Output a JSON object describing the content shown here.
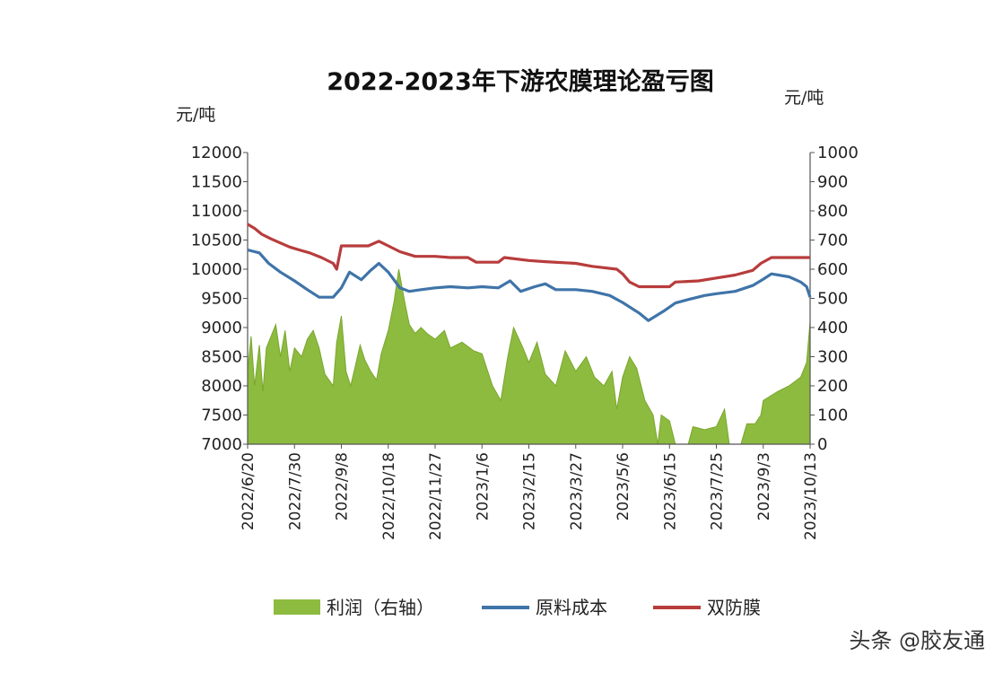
{
  "watermark": "头条 @胶友通",
  "chart_data": {
    "type": "area+line",
    "title": "2022-2023年下游农膜理论盈亏图",
    "left_unit": "元/吨",
    "right_unit": "元/吨",
    "y_left": {
      "min": 7000,
      "max": 12000,
      "ticks": [
        "12000",
        "11500",
        "11000",
        "10500",
        "10000",
        "9500",
        "9000",
        "8500",
        "8000",
        "7500",
        "7000"
      ]
    },
    "y_right": {
      "min": 0,
      "max": 1000,
      "ticks": [
        "1000",
        "900",
        "800",
        "700",
        "600",
        "500",
        "400",
        "300",
        "200",
        "100",
        "0"
      ]
    },
    "x_ticks": [
      "2022/6/20",
      "2022/7/30",
      "2022/9/8",
      "2022/10/18",
      "2022/11/27",
      "2023/1/6",
      "2023/2/15",
      "2023/3/27",
      "2023/5/6",
      "2023/6/15",
      "2023/7/25",
      "2023/9/3",
      "2023/10/13"
    ],
    "x_domain": [
      "2022/6/20",
      "2023/10/13"
    ],
    "colors": {
      "profit": "#8dbb3f",
      "profit_edge": "#7aa62e",
      "cost": "#3f74a8",
      "film": "#b83c3c",
      "axis": "#555555"
    },
    "legend": [
      {
        "label": "利润（右轴）",
        "color": "#8dbb3f",
        "kind": "area"
      },
      {
        "label": "原料成本",
        "color": "#3f74a8",
        "kind": "line"
      },
      {
        "label": "双防膜",
        "color": "#b83c3c",
        "kind": "line"
      }
    ],
    "series": [
      {
        "name": "双防膜",
        "axis": "left",
        "points": [
          [
            "2022/6/20",
            10770
          ],
          [
            "2022/6/26",
            10700
          ],
          [
            "2022/7/2",
            10600
          ],
          [
            "2022/7/10",
            10520
          ],
          [
            "2022/7/18",
            10450
          ],
          [
            "2022/7/26",
            10380
          ],
          [
            "2022/8/3",
            10330
          ],
          [
            "2022/8/12",
            10280
          ],
          [
            "2022/8/22",
            10200
          ],
          [
            "2022/9/1",
            10100
          ],
          [
            "2022/9/4",
            10000
          ],
          [
            "2022/9/8",
            10400
          ],
          [
            "2022/9/20",
            10400
          ],
          [
            "2022/10/1",
            10400
          ],
          [
            "2022/10/10",
            10480
          ],
          [
            "2022/10/18",
            10400
          ],
          [
            "2022/10/28",
            10300
          ],
          [
            "2022/11/10",
            10220
          ],
          [
            "2022/11/27",
            10220
          ],
          [
            "2022/12/10",
            10200
          ],
          [
            "2022/12/25",
            10200
          ],
          [
            "2023/1/1",
            10120
          ],
          [
            "2023/1/20",
            10120
          ],
          [
            "2023/1/25",
            10200
          ],
          [
            "2023/2/15",
            10150
          ],
          [
            "2023/3/1",
            10130
          ],
          [
            "2023/3/27",
            10100
          ],
          [
            "2023/4/10",
            10050
          ],
          [
            "2023/5/1",
            10000
          ],
          [
            "2023/5/6",
            9920
          ],
          [
            "2023/5/12",
            9780
          ],
          [
            "2023/5/20",
            9700
          ],
          [
            "2023/6/15",
            9700
          ],
          [
            "2023/6/20",
            9780
          ],
          [
            "2023/7/10",
            9800
          ],
          [
            "2023/7/25",
            9850
          ],
          [
            "2023/8/10",
            9900
          ],
          [
            "2023/8/25",
            9980
          ],
          [
            "2023/9/1",
            10100
          ],
          [
            "2023/9/10",
            10200
          ],
          [
            "2023/10/10",
            10200
          ],
          [
            "2023/10/13",
            10200
          ]
        ]
      },
      {
        "name": "原料成本",
        "axis": "left",
        "points": [
          [
            "2022/6/20",
            10330
          ],
          [
            "2022/6/30",
            10280
          ],
          [
            "2022/7/8",
            10100
          ],
          [
            "2022/7/18",
            9950
          ],
          [
            "2022/7/30",
            9800
          ],
          [
            "2022/8/10",
            9650
          ],
          [
            "2022/8/20",
            9520
          ],
          [
            "2022/9/1",
            9520
          ],
          [
            "2022/9/8",
            9680
          ],
          [
            "2022/9/15",
            9950
          ],
          [
            "2022/9/25",
            9820
          ],
          [
            "2022/10/3",
            9980
          ],
          [
            "2022/10/10",
            10100
          ],
          [
            "2022/10/18",
            9950
          ],
          [
            "2022/10/28",
            9680
          ],
          [
            "2022/11/5",
            9620
          ],
          [
            "2022/11/15",
            9650
          ],
          [
            "2022/11/27",
            9680
          ],
          [
            "2022/12/10",
            9700
          ],
          [
            "2022/12/25",
            9680
          ],
          [
            "2023/1/6",
            9700
          ],
          [
            "2023/1/20",
            9680
          ],
          [
            "2023/1/30",
            9800
          ],
          [
            "2023/2/8",
            9620
          ],
          [
            "2023/2/20",
            9700
          ],
          [
            "2023/3/1",
            9750
          ],
          [
            "2023/3/10",
            9650
          ],
          [
            "2023/3/27",
            9650
          ],
          [
            "2023/4/10",
            9620
          ],
          [
            "2023/4/25",
            9550
          ],
          [
            "2023/5/6",
            9430
          ],
          [
            "2023/5/20",
            9250
          ],
          [
            "2023/5/28",
            9120
          ],
          [
            "2023/6/10",
            9280
          ],
          [
            "2023/6/20",
            9420
          ],
          [
            "2023/7/1",
            9480
          ],
          [
            "2023/7/15",
            9550
          ],
          [
            "2023/7/25",
            9580
          ],
          [
            "2023/8/10",
            9620
          ],
          [
            "2023/8/25",
            9720
          ],
          [
            "2023/9/3",
            9830
          ],
          [
            "2023/9/10",
            9920
          ],
          [
            "2023/9/25",
            9870
          ],
          [
            "2023/10/5",
            9780
          ],
          [
            "2023/10/10",
            9700
          ],
          [
            "2023/10/13",
            9520
          ]
        ]
      },
      {
        "name": "利润（右轴）",
        "axis": "right",
        "points": [
          [
            "2022/6/20",
            250
          ],
          [
            "2022/6/23",
            370
          ],
          [
            "2022/6/26",
            200
          ],
          [
            "2022/6/30",
            340
          ],
          [
            "2022/7/3",
            180
          ],
          [
            "2022/7/6",
            330
          ],
          [
            "2022/7/10",
            370
          ],
          [
            "2022/7/14",
            410
          ],
          [
            "2022/7/18",
            300
          ],
          [
            "2022/7/22",
            390
          ],
          [
            "2022/7/26",
            250
          ],
          [
            "2022/7/30",
            330
          ],
          [
            "2022/8/5",
            300
          ],
          [
            "2022/8/10",
            360
          ],
          [
            "2022/8/15",
            390
          ],
          [
            "2022/8/20",
            330
          ],
          [
            "2022/8/25",
            240
          ],
          [
            "2022/9/1",
            200
          ],
          [
            "2022/9/4",
            350
          ],
          [
            "2022/9/8",
            440
          ],
          [
            "2022/9/12",
            250
          ],
          [
            "2022/9/16",
            200
          ],
          [
            "2022/9/20",
            270
          ],
          [
            "2022/9/24",
            340
          ],
          [
            "2022/9/28",
            290
          ],
          [
            "2022/10/3",
            250
          ],
          [
            "2022/10/8",
            220
          ],
          [
            "2022/10/12",
            310
          ],
          [
            "2022/10/18",
            390
          ],
          [
            "2022/10/23",
            490
          ],
          [
            "2022/10/27",
            600
          ],
          [
            "2022/11/1",
            490
          ],
          [
            "2022/11/5",
            410
          ],
          [
            "2022/11/10",
            380
          ],
          [
            "2022/11/15",
            400
          ],
          [
            "2022/11/20",
            380
          ],
          [
            "2022/11/27",
            360
          ],
          [
            "2022/12/5",
            390
          ],
          [
            "2022/12/10",
            330
          ],
          [
            "2022/12/20",
            350
          ],
          [
            "2022/12/30",
            320
          ],
          [
            "2023/1/6",
            310
          ],
          [
            "2023/1/15",
            200
          ],
          [
            "2023/1/22",
            150
          ],
          [
            "2023/1/28",
            300
          ],
          [
            "2023/2/2",
            400
          ],
          [
            "2023/2/10",
            330
          ],
          [
            "2023/2/15",
            280
          ],
          [
            "2023/2/22",
            350
          ],
          [
            "2023/3/1",
            240
          ],
          [
            "2023/3/10",
            200
          ],
          [
            "2023/3/18",
            320
          ],
          [
            "2023/3/27",
            250
          ],
          [
            "2023/4/5",
            300
          ],
          [
            "2023/4/12",
            230
          ],
          [
            "2023/4/20",
            200
          ],
          [
            "2023/4/27",
            250
          ],
          [
            "2023/5/1",
            120
          ],
          [
            "2023/5/6",
            230
          ],
          [
            "2023/5/12",
            300
          ],
          [
            "2023/5/18",
            260
          ],
          [
            "2023/5/25",
            150
          ],
          [
            "2023/6/1",
            100
          ],
          [
            "2023/6/5",
            0
          ],
          [
            "2023/6/8",
            100
          ],
          [
            "2023/6/15",
            80
          ],
          [
            "2023/6/20",
            0
          ],
          [
            "2023/7/1",
            0
          ],
          [
            "2023/7/5",
            60
          ],
          [
            "2023/7/15",
            50
          ],
          [
            "2023/7/25",
            60
          ],
          [
            "2023/8/1",
            120
          ],
          [
            "2023/8/5",
            0
          ],
          [
            "2023/8/15",
            0
          ],
          [
            "2023/8/20",
            70
          ],
          [
            "2023/8/27",
            70
          ],
          [
            "2023/9/1",
            100
          ],
          [
            "2023/9/3",
            150
          ],
          [
            "2023/9/15",
            180
          ],
          [
            "2023/9/25",
            200
          ],
          [
            "2023/10/5",
            230
          ],
          [
            "2023/10/10",
            280
          ],
          [
            "2023/10/13",
            420
          ]
        ]
      }
    ]
  }
}
